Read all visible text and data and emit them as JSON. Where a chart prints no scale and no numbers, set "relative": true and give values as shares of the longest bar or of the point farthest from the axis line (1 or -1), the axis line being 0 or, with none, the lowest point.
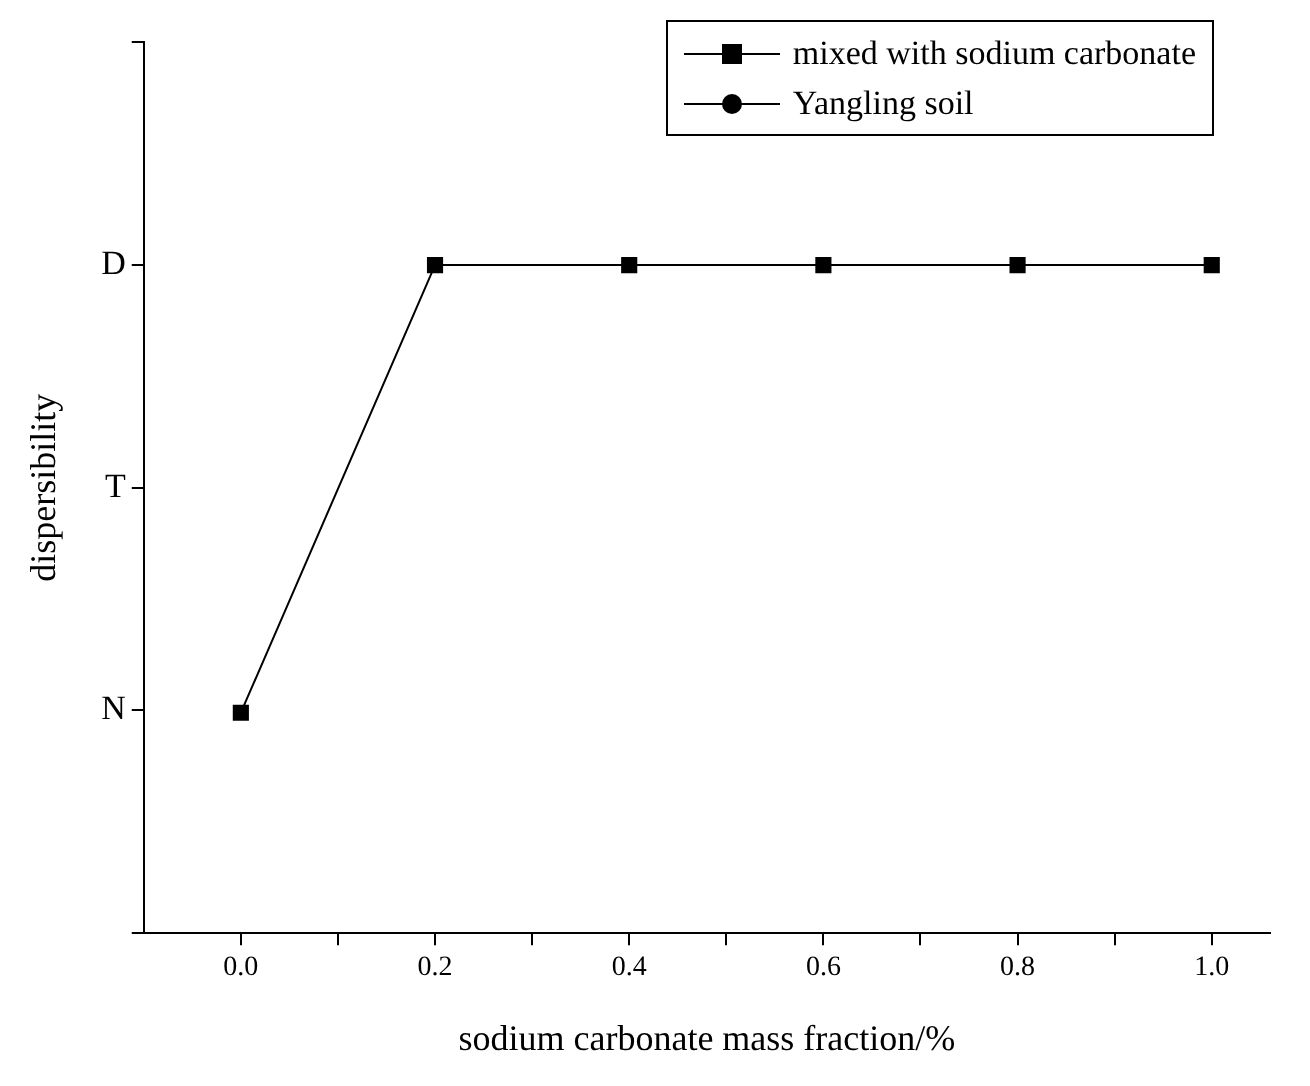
{
  "chart_data": {
    "type": "line",
    "xlabel": "sodium carbonate mass fraction/%",
    "ylabel": "dispersibility",
    "xlim": [
      -0.1,
      1.06
    ],
    "xticks": [
      {
        "value": 0,
        "label": "0.0"
      },
      {
        "value": 0.1,
        "label": null
      },
      {
        "value": 0.2,
        "label": "0.2"
      },
      {
        "value": 0.3,
        "label": null
      },
      {
        "value": 0.4,
        "label": "0.4"
      },
      {
        "value": 0.5,
        "label": null
      },
      {
        "value": 0.6,
        "label": "0.6"
      },
      {
        "value": 0.7,
        "label": null
      },
      {
        "value": 0.8,
        "label": "0.8"
      },
      {
        "value": 0.9,
        "label": null
      },
      {
        "value": 1,
        "label": "1.0"
      }
    ],
    "relative": true,
    "y_categories": [
      null,
      "D",
      "T",
      "N",
      null
    ],
    "series": [
      {
        "name": "mixed with sodium carbonate",
        "color": "#000000",
        "marker": "square",
        "x": [
          0,
          0.2,
          0.4,
          0.6,
          0.8,
          1.0
        ],
        "values": [
          0.33,
          1,
          1,
          1,
          1,
          1
        ]
      },
      {
        "name": "Yangling soil",
        "color": "#000000",
        "marker": "circle"
      }
    ],
    "legend": "top right",
    "grid": false,
    "line_style": "solid"
  }
}
